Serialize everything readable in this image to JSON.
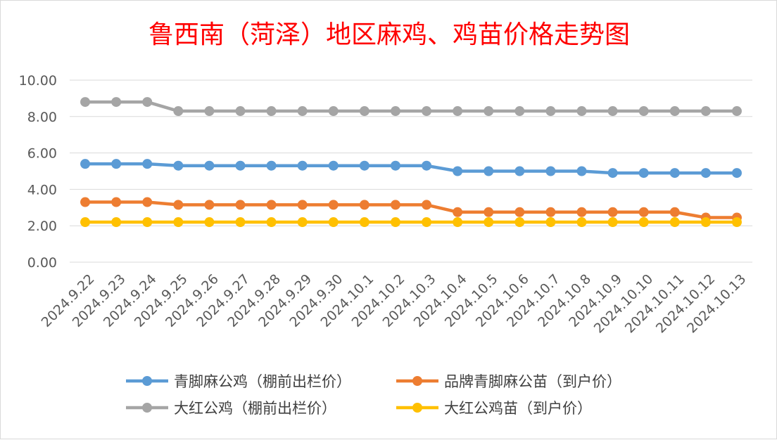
{
  "chart_data": {
    "type": "line",
    "title": "鲁西南（菏泽）地区麻鸡、鸡苗价格走势图",
    "title_color": "#ff0000",
    "xlabel": "",
    "ylabel": "",
    "ylim": [
      0,
      10
    ],
    "yticks": [
      "0.00",
      "2.00",
      "4.00",
      "6.00",
      "8.00",
      "10.00"
    ],
    "grid": true,
    "legend_position": "bottom",
    "categories": [
      "2024.9.22",
      "2024.9.23",
      "2024.9.24",
      "2024.9.25",
      "2024.9.26",
      "2024.9.27",
      "2024.9.28",
      "2024.9.29",
      "2024.9.30",
      "2024.10.1",
      "2024.10.2",
      "2024.10.3",
      "2024.10.4",
      "2024.10.5",
      "2024.10.6",
      "2024.10.7",
      "2024.10.8",
      "2024.10.9",
      "2024.10.10",
      "2024.10.11",
      "2024.10.12",
      "2024.10.13"
    ],
    "series": [
      {
        "name": "青脚麻公鸡（棚前出栏价）",
        "color": "#5b9bd5",
        "values": [
          5.4,
          5.4,
          5.4,
          5.3,
          5.3,
          5.3,
          5.3,
          5.3,
          5.3,
          5.3,
          5.3,
          5.3,
          5.0,
          5.0,
          5.0,
          5.0,
          5.0,
          4.9,
          4.9,
          4.9,
          4.9,
          4.9
        ]
      },
      {
        "name": "品牌青脚麻公苗（到户价）",
        "color": "#ed7d31",
        "values": [
          3.3,
          3.3,
          3.3,
          3.15,
          3.15,
          3.15,
          3.15,
          3.15,
          3.15,
          3.15,
          3.15,
          3.15,
          2.75,
          2.75,
          2.75,
          2.75,
          2.75,
          2.75,
          2.75,
          2.75,
          2.45,
          2.45
        ]
      },
      {
        "name": "大红公鸡（棚前出栏价）",
        "color": "#a5a5a5",
        "values": [
          8.8,
          8.8,
          8.8,
          8.3,
          8.3,
          8.3,
          8.3,
          8.3,
          8.3,
          8.3,
          8.3,
          8.3,
          8.3,
          8.3,
          8.3,
          8.3,
          8.3,
          8.3,
          8.3,
          8.3,
          8.3,
          8.3
        ]
      },
      {
        "name": "大红公鸡苗（到户价）",
        "color": "#ffc000",
        "values": [
          2.2,
          2.2,
          2.2,
          2.2,
          2.2,
          2.2,
          2.2,
          2.2,
          2.2,
          2.2,
          2.2,
          2.2,
          2.2,
          2.2,
          2.2,
          2.2,
          2.2,
          2.2,
          2.2,
          2.2,
          2.2,
          2.2
        ]
      }
    ]
  }
}
